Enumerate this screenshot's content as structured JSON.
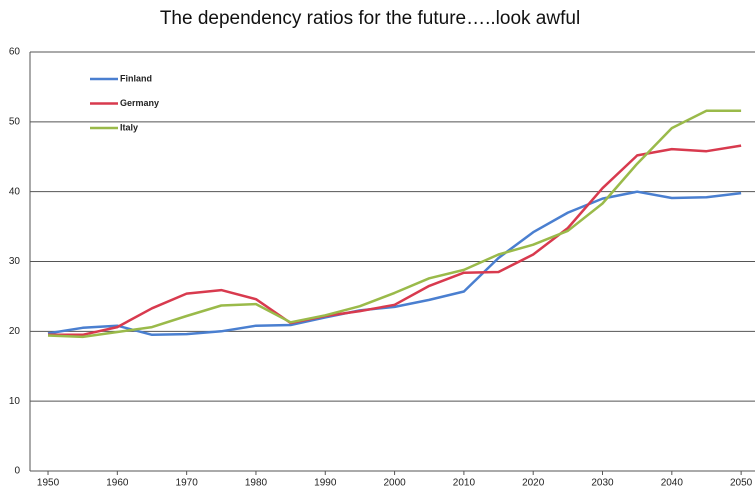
{
  "chart_data": {
    "type": "line",
    "title": "The dependency ratios for the future…..look awful",
    "x": [
      1950,
      1955,
      1960,
      1965,
      1970,
      1975,
      1980,
      1985,
      1990,
      1995,
      2000,
      2005,
      2010,
      2015,
      2020,
      2025,
      2030,
      2035,
      2040,
      2045,
      2050
    ],
    "series": [
      {
        "name": "Finland",
        "color": "#4a7fd0",
        "values": [
          19.7,
          20.5,
          20.8,
          19.5,
          19.6,
          20.0,
          20.8,
          20.9,
          22.0,
          23.0,
          23.5,
          24.5,
          25.7,
          30.5,
          34.2,
          37.0,
          39.0,
          40.0,
          39.1,
          39.2,
          39.8
        ]
      },
      {
        "name": "Germany",
        "color": "#d83a4e",
        "values": [
          19.5,
          19.5,
          20.6,
          23.3,
          25.4,
          25.9,
          24.6,
          21.2,
          22.2,
          22.9,
          23.8,
          26.5,
          28.4,
          28.5,
          31.0,
          34.8,
          40.5,
          45.2,
          46.1,
          45.8,
          46.6
        ]
      },
      {
        "name": "Italy",
        "color": "#9aba4a",
        "values": [
          19.4,
          19.2,
          19.9,
          20.6,
          22.2,
          23.7,
          23.9,
          21.3,
          22.3,
          23.6,
          25.5,
          27.6,
          28.8,
          31.0,
          32.4,
          34.4,
          38.3,
          44.0,
          49.1,
          51.6,
          51.6
        ]
      }
    ],
    "xlim": [
      1947.4,
      2052
    ],
    "xticks": [
      1950,
      1960,
      1970,
      1980,
      1990,
      2000,
      2010,
      2020,
      2030,
      2040,
      2050
    ],
    "ylim": [
      0,
      60
    ],
    "yticks": [
      0,
      10,
      20,
      30,
      40,
      50,
      60
    ],
    "grid": true,
    "legend": "top-left"
  }
}
